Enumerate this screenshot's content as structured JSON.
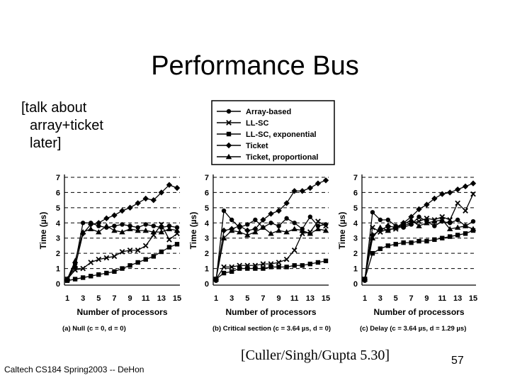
{
  "slide": {
    "title": "Performance Bus",
    "note_lines": [
      "[talk about",
      "array+ticket",
      "later]"
    ],
    "footer": "Caltech CS184 Spring2003 -- DeHon",
    "citation": "[Culler/Singh/Gupta 5.30]",
    "page_number": "57"
  },
  "legend": [
    "Array-based",
    "LL-SC",
    "LL-SC, exponential",
    "Ticket",
    "Ticket, proportional"
  ],
  "chart_data": [
    {
      "type": "line",
      "caption": "(a) Null (c = 0, d = 0)",
      "xlabel": "Number of processors",
      "ylabel": "Time (µs)",
      "xlim": [
        1,
        15
      ],
      "ylim": [
        0,
        7
      ],
      "xticks": [
        "1",
        "3",
        "5",
        "7",
        "9",
        "11",
        "13",
        "15"
      ],
      "yticks": [
        "0",
        "1",
        "2",
        "3",
        "4",
        "5",
        "6",
        "7"
      ],
      "x": [
        1,
        2,
        3,
        4,
        5,
        6,
        7,
        8,
        9,
        10,
        11,
        12,
        13,
        14,
        15
      ],
      "series": [
        {
          "name": "Array-based",
          "marker": "circle",
          "values": [
            0.3,
            1.3,
            4.0,
            4.0,
            3.8,
            3.7,
            3.8,
            3.9,
            3.8,
            3.7,
            3.9,
            3.8,
            3.7,
            3.8,
            3.7
          ]
        },
        {
          "name": "LL-SC",
          "marker": "x",
          "values": [
            0.3,
            0.9,
            1.0,
            1.4,
            1.6,
            1.7,
            1.8,
            2.1,
            2.2,
            2.2,
            2.5,
            3.2,
            3.9,
            2.9,
            3.3
          ]
        },
        {
          "name": "LL-SC, exponential",
          "marker": "square",
          "values": [
            0.2,
            0.3,
            0.4,
            0.5,
            0.6,
            0.7,
            0.8,
            1.0,
            1.2,
            1.4,
            1.6,
            1.8,
            2.1,
            2.4,
            2.6
          ]
        },
        {
          "name": "Ticket",
          "marker": "diamond",
          "values": [
            0.3,
            1.1,
            3.3,
            3.9,
            4.0,
            4.3,
            4.5,
            4.8,
            5.0,
            5.3,
            5.6,
            5.5,
            6.0,
            6.5,
            6.3
          ]
        },
        {
          "name": "Ticket, proportional",
          "marker": "triangle",
          "values": [
            0.3,
            1.5,
            3.4,
            3.6,
            3.4,
            3.8,
            3.5,
            3.4,
            3.6,
            3.5,
            3.5,
            3.4,
            3.4,
            3.6,
            3.5
          ]
        }
      ]
    },
    {
      "type": "line",
      "caption": "(b) Critical section (c = 3.64 µs, d = 0)",
      "xlabel": "Number of processors",
      "ylabel": "Time (µs)",
      "xlim": [
        1,
        15
      ],
      "ylim": [
        0,
        7
      ],
      "xticks": [
        "1",
        "3",
        "5",
        "7",
        "9",
        "11",
        "13",
        "15"
      ],
      "yticks": [
        "0",
        "1",
        "2",
        "3",
        "4",
        "5",
        "6",
        "7"
      ],
      "x": [
        1,
        2,
        3,
        4,
        5,
        6,
        7,
        8,
        9,
        10,
        11,
        12,
        13,
        14,
        15
      ],
      "series": [
        {
          "name": "Array-based",
          "marker": "circle",
          "values": [
            0.2,
            4.8,
            4.2,
            3.7,
            3.9,
            4.2,
            3.7,
            4.0,
            3.8,
            4.3,
            4.0,
            3.6,
            4.4,
            3.8,
            3.9
          ]
        },
        {
          "name": "LL-SC",
          "marker": "x",
          "values": [
            0.3,
            1.1,
            1.1,
            1.2,
            1.2,
            1.2,
            1.3,
            1.3,
            1.4,
            1.6,
            2.2,
            3.3,
            3.4,
            4.1,
            3.8
          ]
        },
        {
          "name": "LL-SC, exponential",
          "marker": "square",
          "values": [
            0.3,
            0.7,
            0.8,
            1.0,
            1.0,
            1.0,
            1.0,
            1.1,
            1.1,
            1.1,
            1.2,
            1.2,
            1.3,
            1.4,
            1.5
          ]
        },
        {
          "name": "Ticket",
          "marker": "diamond",
          "values": [
            0.3,
            3.5,
            3.6,
            3.8,
            3.5,
            3.6,
            4.2,
            4.6,
            4.8,
            5.3,
            6.1,
            6.1,
            6.3,
            6.6,
            6.8
          ]
        },
        {
          "name": "Ticket, proportional",
          "marker": "triangle",
          "values": [
            0.3,
            3.0,
            3.5,
            3.4,
            3.2,
            3.4,
            3.7,
            3.3,
            3.5,
            3.4,
            3.6,
            3.5,
            3.3,
            3.6,
            3.5
          ]
        }
      ]
    },
    {
      "type": "line",
      "caption": "(c) Delay (c = 3.64 µs, d = 1.29 µs)",
      "xlabel": "Number of processors",
      "ylabel": "Time (µs)",
      "xlim": [
        1,
        15
      ],
      "ylim": [
        0,
        7
      ],
      "xticks": [
        "1",
        "3",
        "5",
        "7",
        "9",
        "11",
        "13",
        "15"
      ],
      "yticks": [
        "0",
        "1",
        "2",
        "3",
        "4",
        "5",
        "6",
        "7"
      ],
      "x": [
        1,
        2,
        3,
        4,
        5,
        6,
        7,
        8,
        9,
        10,
        11,
        12,
        13,
        14,
        15
      ],
      "series": [
        {
          "name": "Array-based",
          "marker": "circle",
          "values": [
            0.2,
            4.7,
            4.2,
            4.2,
            3.8,
            3.7,
            3.9,
            4.4,
            4.1,
            3.8,
            4.1,
            4.0,
            4.2,
            3.8,
            4.1
          ]
        },
        {
          "name": "LL-SC",
          "marker": "x",
          "values": [
            0.3,
            3.7,
            3.4,
            3.6,
            3.6,
            3.8,
            4.0,
            4.1,
            4.3,
            4.2,
            4.4,
            4.2,
            5.3,
            4.8,
            5.9
          ]
        },
        {
          "name": "LL-SC, exponential",
          "marker": "square",
          "values": [
            0.3,
            2.0,
            2.3,
            2.5,
            2.6,
            2.7,
            2.7,
            2.8,
            2.8,
            2.9,
            3.0,
            3.1,
            3.2,
            3.3,
            3.5
          ]
        },
        {
          "name": "Ticket",
          "marker": "diamond",
          "values": [
            0.3,
            3.2,
            3.5,
            3.8,
            3.7,
            4.0,
            4.4,
            4.9,
            5.2,
            5.6,
            5.9,
            6.0,
            6.2,
            6.4,
            6.6
          ]
        },
        {
          "name": "Ticket, proportional",
          "marker": "triangle",
          "values": [
            0.3,
            3.0,
            3.7,
            3.5,
            3.7,
            3.9,
            4.2,
            3.8,
            4.0,
            4.1,
            4.2,
            3.6,
            3.7,
            3.8,
            3.6
          ]
        }
      ]
    }
  ]
}
